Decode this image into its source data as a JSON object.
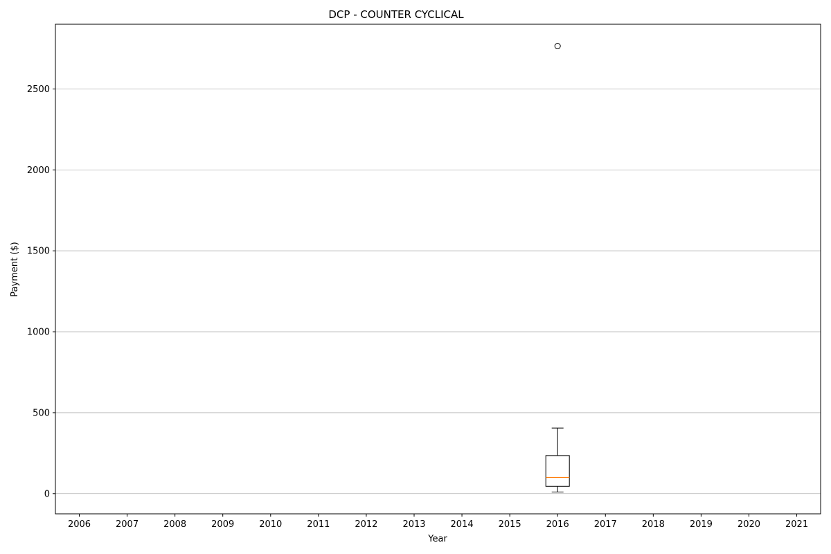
{
  "chart_data": {
    "type": "boxplot",
    "title": "DCP - COUNTER CYCLICAL",
    "xlabel": "Year",
    "ylabel": "Payment ($)",
    "categories": [
      "2006",
      "2007",
      "2008",
      "2009",
      "2010",
      "2011",
      "2012",
      "2013",
      "2014",
      "2015",
      "2016",
      "2017",
      "2018",
      "2019",
      "2020",
      "2021"
    ],
    "ylim": [
      -125,
      2900
    ],
    "yticks": [
      0,
      500,
      1000,
      1500,
      2000,
      2500
    ],
    "grid": "y",
    "boxes": [
      {
        "category": "2016",
        "whisker_low": 10,
        "q1": 45,
        "median": 100,
        "q3": 235,
        "whisker_high": 405,
        "outliers": [
          2765
        ]
      }
    ],
    "colors": {
      "box": "#000000",
      "median": "#ff7f0e",
      "grid": "#b0b0b0"
    }
  }
}
